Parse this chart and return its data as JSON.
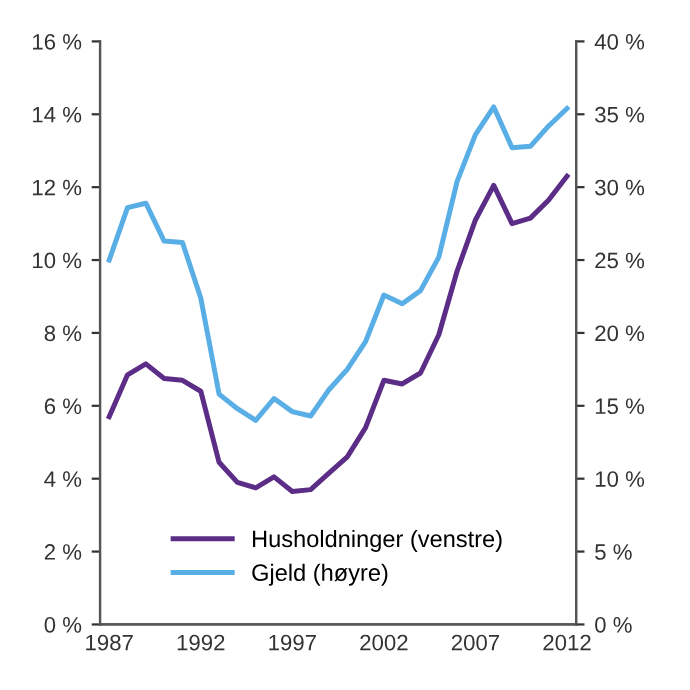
{
  "chart_data": {
    "type": "line",
    "x": [
      1987,
      1988,
      1989,
      1990,
      1991,
      1992,
      1993,
      1994,
      1995,
      1996,
      1997,
      1998,
      1999,
      2000,
      2001,
      2002,
      2003,
      2004,
      2005,
      2006,
      2007,
      2008,
      2009,
      2010,
      2011,
      2012
    ],
    "series": [
      {
        "name": "Husholdninger (venstre)",
        "color": "#5b2d86",
        "values": [
          5.7,
          6.85,
          7.15,
          6.75,
          6.7,
          6.4,
          4.45,
          3.9,
          3.75,
          4.05,
          3.65,
          3.7,
          4.15,
          4.6,
          5.4,
          6.7,
          6.6,
          6.9,
          7.95,
          9.7,
          11.1,
          12.05,
          11.0,
          11.15,
          11.65,
          12.3
        ]
      },
      {
        "name": "Gjeld (høyre)",
        "color": "#5aaee6",
        "axis": "y2",
        "values": [
          25.0,
          28.6,
          28.9,
          26.3,
          26.2,
          22.4,
          15.8,
          14.8,
          14.0,
          15.5,
          14.6,
          14.3,
          16.1,
          17.5,
          19.4,
          22.6,
          22.0,
          22.9,
          25.2,
          30.4,
          33.6,
          35.5,
          32.7,
          32.8,
          34.2,
          35.4
        ]
      }
    ],
    "xlim": [
      1986.5,
      2012.5
    ],
    "xticks": [
      1987,
      1992,
      1997,
      2002,
      2007,
      2012
    ],
    "ylim": [
      0,
      16
    ],
    "yticks": [
      {
        "value": 0,
        "label": "0 %"
      },
      {
        "value": 2,
        "label": "2 %"
      },
      {
        "value": 4,
        "label": "4 %"
      },
      {
        "value": 6,
        "label": "6 %"
      },
      {
        "value": 8,
        "label": "8 %"
      },
      {
        "value": 10,
        "label": "10 %"
      },
      {
        "value": 12,
        "label": "12 %"
      },
      {
        "value": 14,
        "label": "14 %"
      },
      {
        "value": 16,
        "label": "16 %"
      }
    ],
    "y2lim": [
      0,
      40
    ],
    "y2ticks": [
      {
        "value": 0,
        "label": "0 %"
      },
      {
        "value": 5,
        "label": "5 %"
      },
      {
        "value": 10,
        "label": "10 %"
      },
      {
        "value": 15,
        "label": "15 %"
      },
      {
        "value": 20,
        "label": "20 %"
      },
      {
        "value": 25,
        "label": "25 %"
      },
      {
        "value": 30,
        "label": "30 %"
      },
      {
        "value": 35,
        "label": "35 %"
      },
      {
        "value": 40,
        "label": "40 %"
      }
    ],
    "legend": "bottom",
    "grid": false
  }
}
